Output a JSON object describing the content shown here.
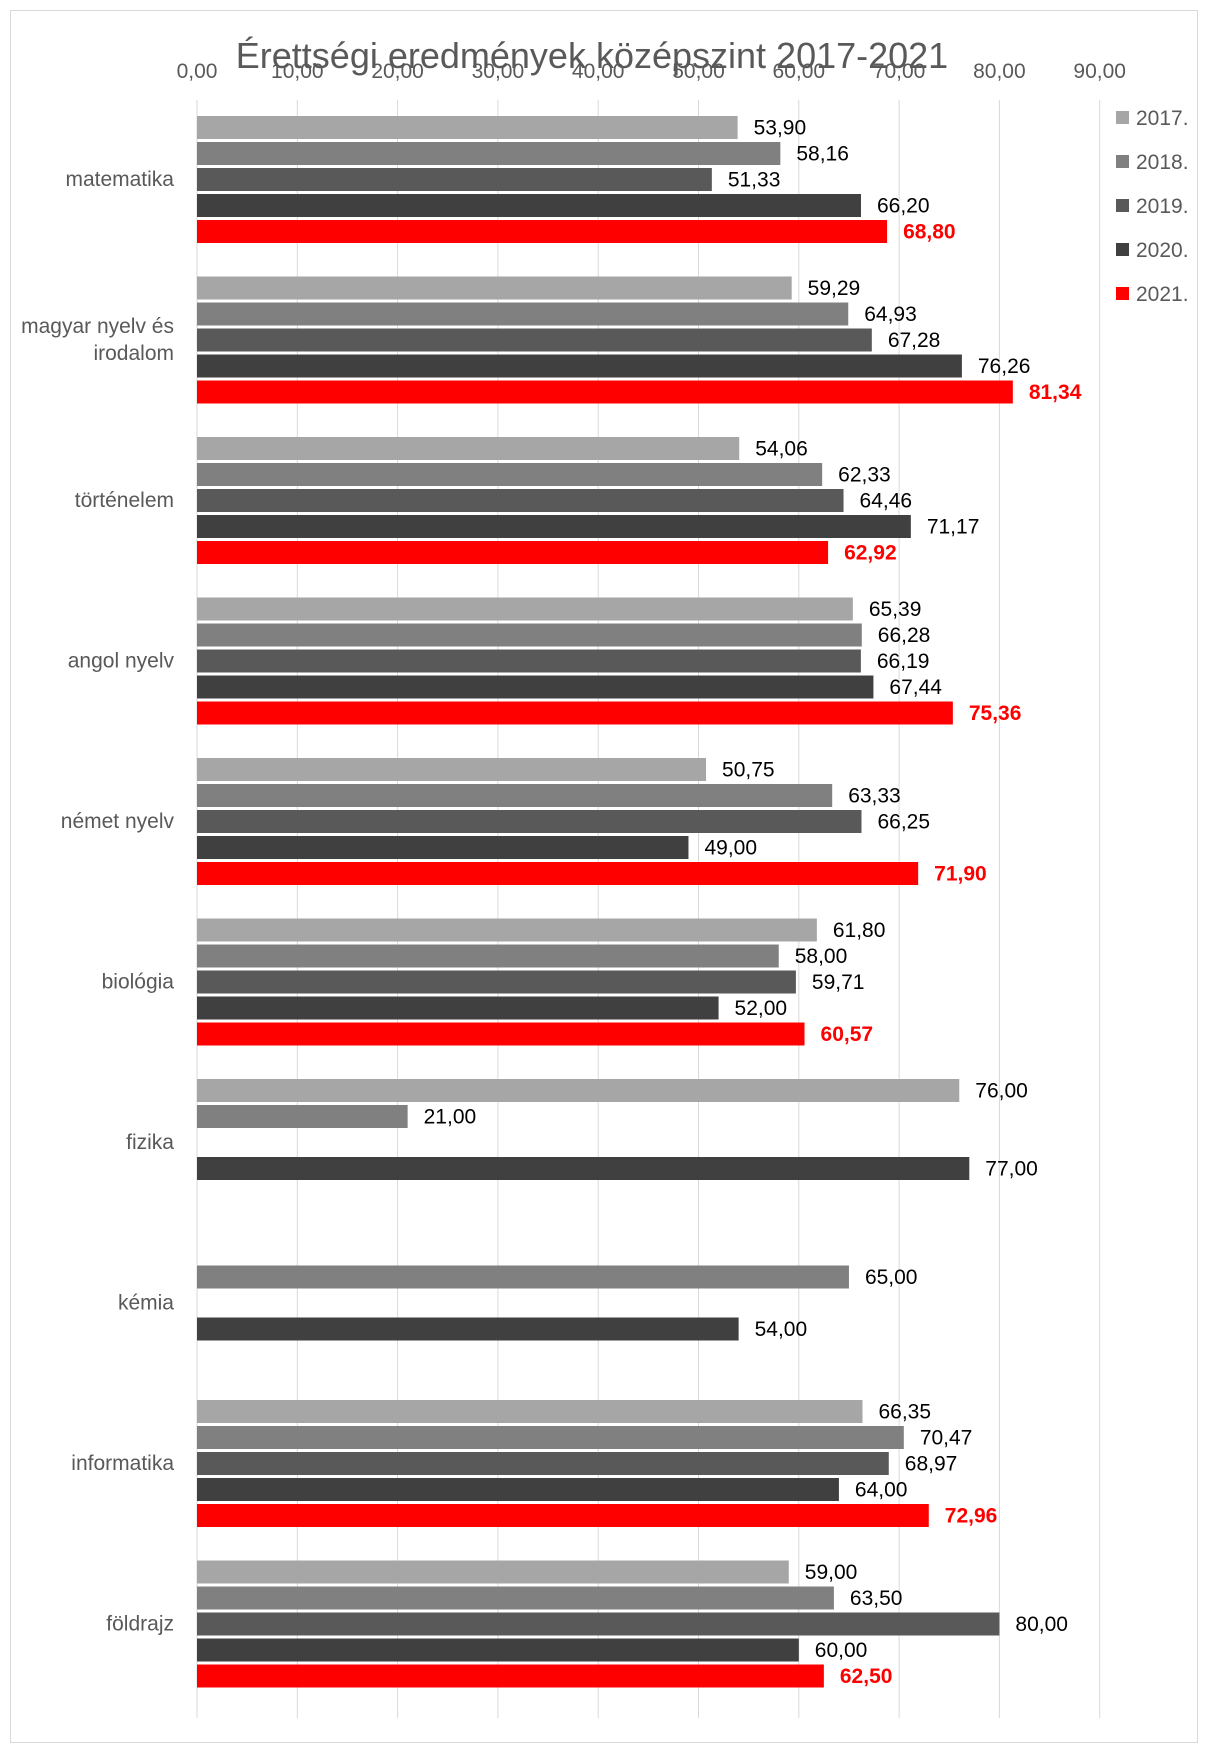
{
  "chart_data": {
    "type": "bar",
    "orientation": "horizontal",
    "title": "Érettségi eredmények középszint 2017-2021",
    "xlabel": "",
    "ylabel": "",
    "xlim": [
      0,
      90
    ],
    "x_ticks": [
      "0,00",
      "10,00",
      "20,00",
      "30,00",
      "40,00",
      "50,00",
      "60,00",
      "70,00",
      "80,00",
      "90,00"
    ],
    "x_axis_position": "top",
    "grid": true,
    "legend_position": "right",
    "categories": [
      "matematika",
      "magyar nyelv és irodalom",
      "történelem",
      "angol nyelv",
      "német nyelv",
      "biológia",
      "fizika",
      "kémia",
      "informatika",
      "földrajz"
    ],
    "category_lines": [
      [
        "matematika"
      ],
      [
        "magyar nyelv és",
        "irodalom"
      ],
      [
        "történelem"
      ],
      [
        "angol nyelv"
      ],
      [
        "német nyelv"
      ],
      [
        "biológia"
      ],
      [
        "fizika"
      ],
      [
        "kémia"
      ],
      [
        "informatika"
      ],
      [
        "földrajz"
      ]
    ],
    "series": [
      {
        "name": "2017.",
        "color": "#a6a6a6",
        "values": [
          53.9,
          59.29,
          54.06,
          65.39,
          50.75,
          61.8,
          76.0,
          null,
          66.35,
          59.0
        ],
        "labels": [
          "53,90",
          "59,29",
          "54,06",
          "65,39",
          "50,75",
          "61,80",
          "76,00",
          null,
          "66,35",
          "59,00"
        ]
      },
      {
        "name": "2018.",
        "color": "#808080",
        "values": [
          58.16,
          64.93,
          62.33,
          66.28,
          63.33,
          58.0,
          21.0,
          65.0,
          70.47,
          63.5
        ],
        "labels": [
          "58,16",
          "64,93",
          "62,33",
          "66,28",
          "63,33",
          "58,00",
          "21,00",
          "65,00",
          "70,47",
          "63,50"
        ]
      },
      {
        "name": "2019.",
        "color": "#595959",
        "values": [
          51.33,
          67.28,
          64.46,
          66.19,
          66.25,
          59.71,
          null,
          null,
          68.97,
          80.0
        ],
        "labels": [
          "51,33",
          "67,28",
          "64,46",
          "66,19",
          "66,25",
          "59,71",
          null,
          null,
          "68,97",
          "80,00"
        ]
      },
      {
        "name": "2020.",
        "color": "#404040",
        "values": [
          66.2,
          76.26,
          71.17,
          67.44,
          49.0,
          52.0,
          77.0,
          54.0,
          64.0,
          60.0
        ],
        "labels": [
          "66,20",
          "76,26",
          "71,17",
          "67,44",
          "49,00",
          "52,00",
          "77,00",
          "54,00",
          "64,00",
          "60,00"
        ]
      },
      {
        "name": "2021.",
        "color": "#ff0000",
        "highlight": true,
        "values": [
          68.8,
          81.34,
          62.92,
          75.36,
          71.9,
          60.57,
          null,
          null,
          72.96,
          62.5
        ],
        "labels": [
          "68,80",
          "81,34",
          "62,92",
          "75,36",
          "71,90",
          "60,57",
          null,
          null,
          "72,96",
          "62,50"
        ]
      }
    ]
  }
}
